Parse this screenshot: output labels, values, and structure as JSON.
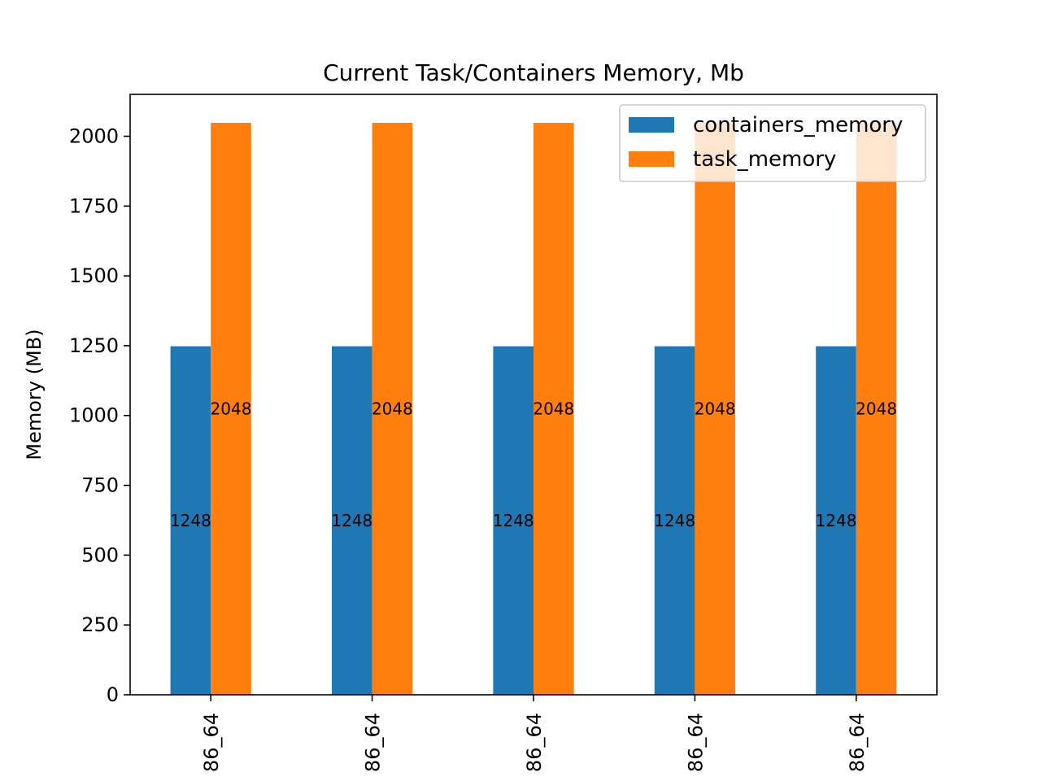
{
  "chart_data": {
    "type": "bar",
    "title": "Current Task/Containers Memory, Mb",
    "xlabel": "",
    "ylabel": "Memory (MB)",
    "ylim": [
      0,
      2150
    ],
    "yticks": [
      0,
      250,
      500,
      750,
      1000,
      1250,
      1500,
      1750,
      2000
    ],
    "categories": [
      "86_64",
      "86_64",
      "86_64",
      "86_64",
      "86_64"
    ],
    "series": [
      {
        "name": "containers_memory",
        "color": "#1f77b4",
        "values": [
          1248,
          1248,
          1248,
          1248,
          1248
        ]
      },
      {
        "name": "task_memory",
        "color": "#ff7f0e",
        "values": [
          2048,
          2048,
          2048,
          2048,
          2048
        ]
      }
    ],
    "data_labels": {
      "containers_memory": [
        "1248",
        "1248",
        "1248",
        "1248",
        "1248"
      ],
      "task_memory": [
        "2048",
        "2048",
        "2048",
        "2048",
        "2048"
      ]
    },
    "legend": "top-right",
    "grid": false
  }
}
